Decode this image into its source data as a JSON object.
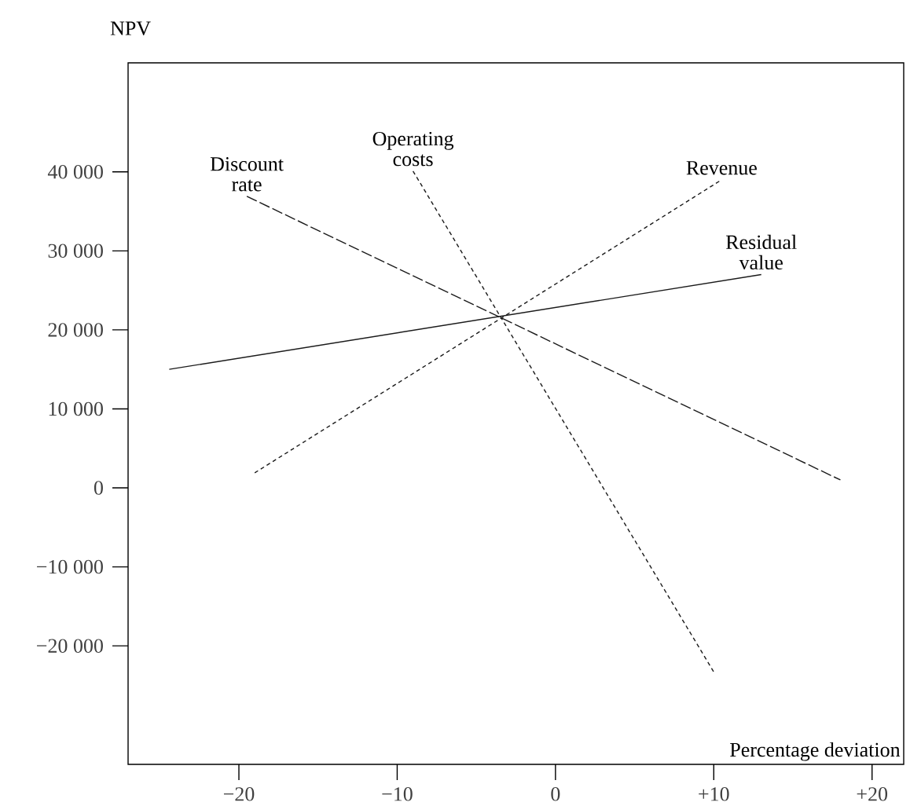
{
  "chart_data": {
    "type": "line",
    "xlabel": "Percentage deviation",
    "ylabel": "NPV",
    "xlim": [
      -27,
      22
    ],
    "ylim": [
      -35000,
      53800
    ],
    "xticks": [
      {
        "value": -20,
        "label": "−20"
      },
      {
        "value": -10,
        "label": "−10"
      },
      0,
      {
        "value": 10,
        "label": "+10"
      },
      {
        "value": 20,
        "label": "+20"
      }
    ],
    "yticks": [
      {
        "value": -20000,
        "label": "−20 000"
      },
      {
        "value": -10000,
        "label": "−10 000"
      },
      0,
      {
        "value": 10000,
        "label": "10 000"
      },
      {
        "value": 20000,
        "label": "20 000"
      },
      {
        "value": 30000,
        "label": "30 000"
      },
      {
        "value": 40000,
        "label": "40 000"
      }
    ],
    "series": [
      {
        "name": "Discount rate",
        "color": "#1a1a1a",
        "line_style": "dashed",
        "x": [
          -19.5,
          18.0
        ],
        "values": [
          36900,
          1000
        ]
      },
      {
        "name": "Operating costs",
        "color": "#1a1a1a",
        "line_style": "dotted",
        "x": [
          -9.0,
          10.0
        ],
        "values": [
          40100,
          -23300
        ]
      },
      {
        "name": "Revenue",
        "color": "#1a1a1a",
        "line_style": "dotted",
        "x": [
          -19.0,
          10.5
        ],
        "values": [
          1900,
          39000
        ]
      },
      {
        "name": "Residual value",
        "color": "#1a1a1a",
        "line_style": "solid",
        "x": [
          -24.4,
          13.0
        ],
        "values": [
          15000,
          27000
        ]
      }
    ]
  }
}
